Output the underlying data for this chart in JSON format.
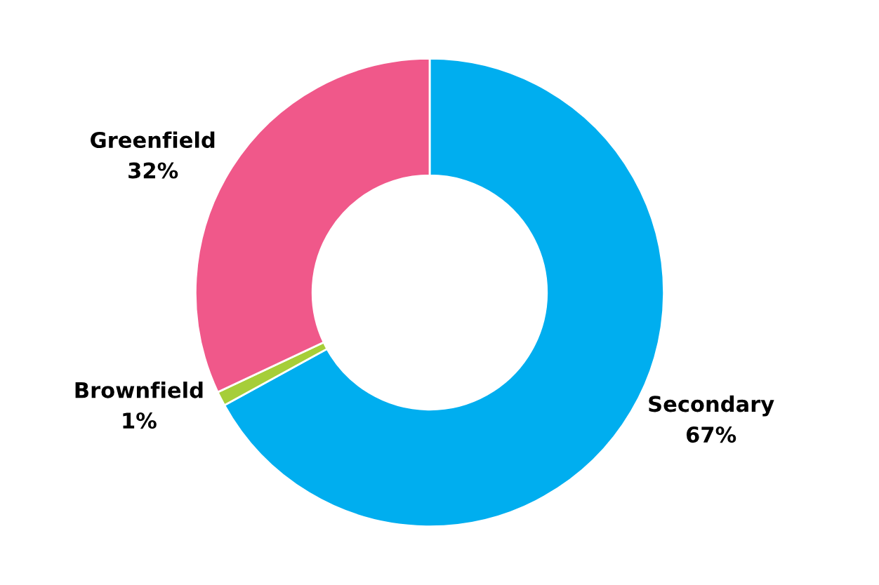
{
  "chart_data": {
    "type": "donut",
    "categories": [
      "Secondary",
      "Brownfield",
      "Greenfield"
    ],
    "values": [
      67,
      1,
      32
    ],
    "colors": [
      "#00aeef",
      "#a6ce39",
      "#f0588a"
    ],
    "value_labels": [
      "67%",
      "1%",
      "32%"
    ]
  }
}
